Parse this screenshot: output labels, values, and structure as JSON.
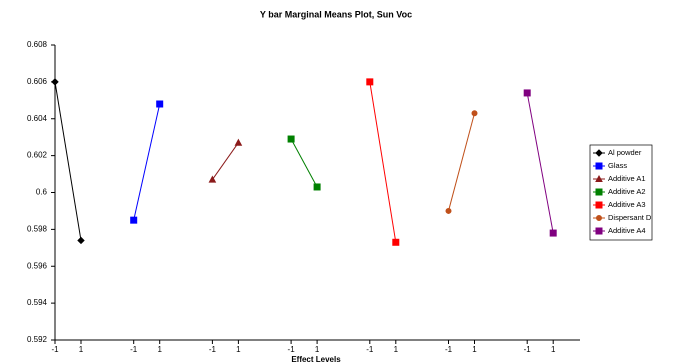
{
  "chart_data": {
    "type": "line",
    "title": "Y bar Marginal Means Plot, Sun Voc",
    "x_label": "Effect Levels",
    "categories": [
      "-1",
      "1",
      "-1",
      "1",
      "-1",
      "1",
      "-1",
      "1",
      "-1",
      "1",
      "-1",
      "1",
      "-1",
      "1"
    ],
    "series": [
      {
        "name": "Al powder",
        "color": "#000000",
        "marker": "diamond",
        "values": [
          0.606,
          0.5974,
          null,
          null,
          null,
          null,
          null,
          null,
          null,
          null,
          null,
          null,
          null,
          null
        ]
      },
      {
        "name": "Glass",
        "color": "#0000ff",
        "marker": "square",
        "values": [
          null,
          null,
          0.5985,
          0.6048,
          null,
          null,
          null,
          null,
          null,
          null,
          null,
          null,
          null,
          null
        ]
      },
      {
        "name": "Additive A1",
        "color": "#8b1a1a",
        "marker": "triangle",
        "values": [
          null,
          null,
          null,
          null,
          0.6007,
          0.6027,
          null,
          null,
          null,
          null,
          null,
          null,
          null,
          null
        ]
      },
      {
        "name": "Additive A2",
        "color": "#008000",
        "marker": "square",
        "values": [
          null,
          null,
          null,
          null,
          null,
          null,
          0.6029,
          0.6003,
          null,
          null,
          null,
          null,
          null,
          null
        ]
      },
      {
        "name": "Additive A3",
        "color": "#ff0000",
        "marker": "square",
        "values": [
          null,
          null,
          null,
          null,
          null,
          null,
          null,
          null,
          0.606,
          0.5973,
          null,
          null,
          null,
          null
        ]
      },
      {
        "name": "Dispersant D",
        "color": "#c0501a",
        "marker": "circle",
        "values": [
          null,
          null,
          null,
          null,
          null,
          null,
          null,
          null,
          null,
          null,
          0.599,
          0.6043,
          null,
          null
        ]
      },
      {
        "name": "Additive A4",
        "color": "#800080",
        "marker": "square",
        "values": [
          null,
          null,
          null,
          null,
          null,
          null,
          null,
          null,
          null,
          null,
          null,
          null,
          0.6054,
          0.5978
        ]
      }
    ],
    "ylim": [
      0.592,
      0.608
    ],
    "yticks": [
      0.592,
      0.594,
      0.596,
      0.598,
      0.6,
      0.602,
      0.604,
      0.606,
      0.608
    ],
    "legend": "right"
  }
}
